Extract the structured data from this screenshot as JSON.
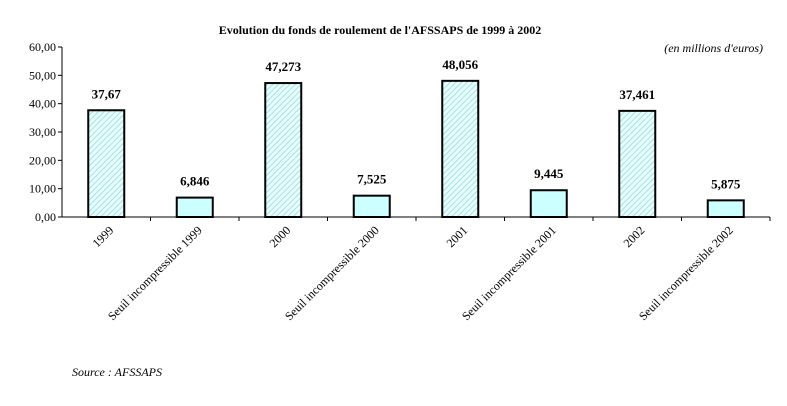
{
  "chart_data": {
    "type": "bar",
    "title": "Evolution du fonds de roulement de l'AFSSAPS de 1999 à 2002",
    "unit_note": "(en millions d'euros)",
    "source": "Source :  AFSSAPS",
    "categories": [
      "1999",
      "Seuil incompressible 1999",
      "2000",
      "Seuil incompressible 2000",
      "2001",
      "Seuil incompressible 2001",
      "2002",
      "Seuil incompressible 2002"
    ],
    "values": [
      37.67,
      6.846,
      47.273,
      7.525,
      48.056,
      9.445,
      37.461,
      5.875
    ],
    "data_labels": [
      "37,67",
      "6,846",
      "47,273",
      "7,525",
      "48,056",
      "9,445",
      "37,461",
      "5,875"
    ],
    "ylim": [
      0,
      60
    ],
    "yticks": [
      "0,00",
      "10,00",
      "20,00",
      "30,00",
      "40,00",
      "50,00",
      "60,00"
    ],
    "grid": false,
    "legend": "none",
    "colors": {
      "year_bar": "#ccffff",
      "year_hatch": "#99dddd",
      "seuil_bar": "#ccffff",
      "outline": "#000000"
    }
  }
}
